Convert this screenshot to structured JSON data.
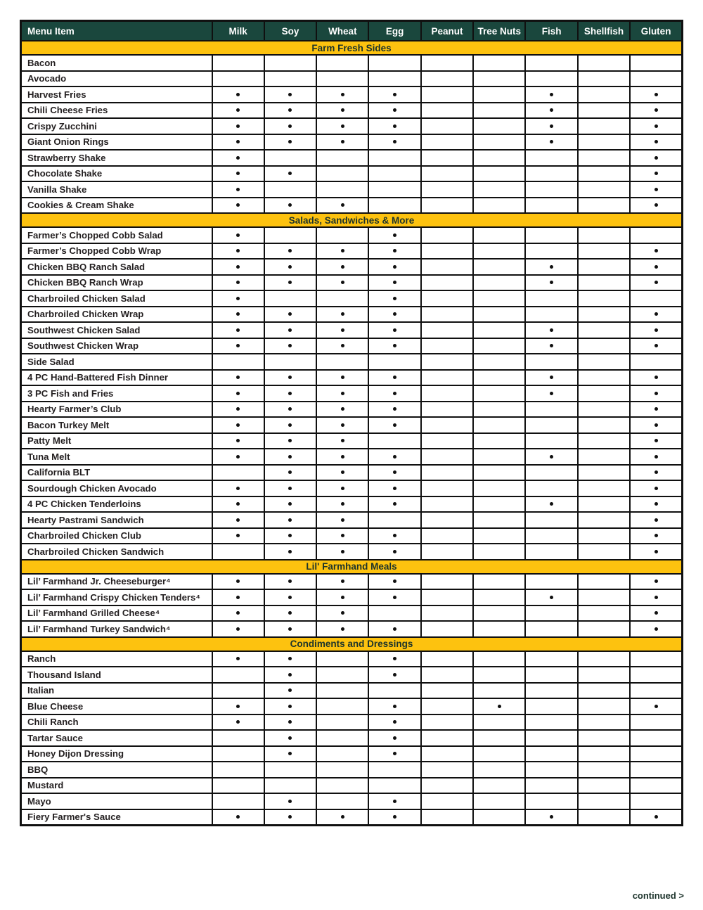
{
  "page": {
    "continued_label": "continued >"
  },
  "colors": {
    "header_green": "#1a473d",
    "section_gold": "#fdc20f",
    "border_black": "#101010",
    "header_text": "#ffffff",
    "body_text": "#231f20"
  },
  "table": {
    "menu_header": "Menu Item",
    "allergen_columns": [
      "Milk",
      "Soy",
      "Wheat",
      "Egg",
      "Peanut",
      "Tree Nuts",
      "Fish",
      "Shellfish",
      "Gluten"
    ],
    "sections": [
      {
        "title": "Farm Fresh Sides",
        "items": [
          {
            "name": "Bacon",
            "allergens": []
          },
          {
            "name": "Avocado",
            "allergens": []
          },
          {
            "name": "Harvest Fries",
            "allergens": [
              "Milk",
              "Soy",
              "Wheat",
              "Egg",
              "Fish",
              "Gluten"
            ]
          },
          {
            "name": "Chili Cheese Fries",
            "allergens": [
              "Milk",
              "Soy",
              "Wheat",
              "Egg",
              "Fish",
              "Gluten"
            ]
          },
          {
            "name": "Crispy Zucchini",
            "allergens": [
              "Milk",
              "Soy",
              "Wheat",
              "Egg",
              "Fish",
              "Gluten"
            ]
          },
          {
            "name": "Giant Onion Rings",
            "allergens": [
              "Milk",
              "Soy",
              "Wheat",
              "Egg",
              "Fish",
              "Gluten"
            ]
          },
          {
            "name": "Strawberry Shake",
            "allergens": [
              "Milk",
              "Gluten"
            ]
          },
          {
            "name": "Chocolate Shake",
            "allergens": [
              "Milk",
              "Soy",
              "Gluten"
            ]
          },
          {
            "name": "Vanilla Shake",
            "allergens": [
              "Milk",
              "Gluten"
            ]
          },
          {
            "name": "Cookies & Cream Shake",
            "allergens": [
              "Milk",
              "Soy",
              "Wheat",
              "Gluten"
            ]
          }
        ]
      },
      {
        "title": "Salads, Sandwiches & More",
        "items": [
          {
            "name": "Farmer’s Chopped Cobb Salad",
            "allergens": [
              "Milk",
              "Egg"
            ]
          },
          {
            "name": "Farmer’s Chopped Cobb Wrap",
            "allergens": [
              "Milk",
              "Soy",
              "Wheat",
              "Egg",
              "Gluten"
            ]
          },
          {
            "name": "Chicken BBQ Ranch Salad",
            "allergens": [
              "Milk",
              "Soy",
              "Wheat",
              "Egg",
              "Fish",
              "Gluten"
            ]
          },
          {
            "name": "Chicken BBQ Ranch Wrap",
            "allergens": [
              "Milk",
              "Soy",
              "Wheat",
              "Egg",
              "Fish",
              "Gluten"
            ]
          },
          {
            "name": "Charbroiled Chicken Salad",
            "allergens": [
              "Milk",
              "Egg"
            ]
          },
          {
            "name": "Charbroiled Chicken Wrap",
            "allergens": [
              "Milk",
              "Soy",
              "Wheat",
              "Egg",
              "Gluten"
            ]
          },
          {
            "name": "Southwest Chicken Salad",
            "allergens": [
              "Milk",
              "Soy",
              "Wheat",
              "Egg",
              "Fish",
              "Gluten"
            ]
          },
          {
            "name": "Southwest Chicken Wrap",
            "allergens": [
              "Milk",
              "Soy",
              "Wheat",
              "Egg",
              "Fish",
              "Gluten"
            ]
          },
          {
            "name": "Side Salad",
            "allergens": []
          },
          {
            "name": "4 PC Hand-Battered Fish Dinner",
            "allergens": [
              "Milk",
              "Soy",
              "Wheat",
              "Egg",
              "Fish",
              "Gluten"
            ]
          },
          {
            "name": "3 PC Fish and Fries",
            "allergens": [
              "Milk",
              "Soy",
              "Wheat",
              "Egg",
              "Fish",
              "Gluten"
            ]
          },
          {
            "name": "Hearty Farmer’s Club",
            "allergens": [
              "Milk",
              "Soy",
              "Wheat",
              "Egg",
              "Gluten"
            ]
          },
          {
            "name": "Bacon Turkey Melt",
            "allergens": [
              "Milk",
              "Soy",
              "Wheat",
              "Egg",
              "Gluten"
            ]
          },
          {
            "name": "Patty Melt",
            "allergens": [
              "Milk",
              "Soy",
              "Wheat",
              "Gluten"
            ]
          },
          {
            "name": "Tuna Melt",
            "allergens": [
              "Milk",
              "Soy",
              "Wheat",
              "Egg",
              "Fish",
              "Gluten"
            ]
          },
          {
            "name": "California BLT",
            "allergens": [
              "Soy",
              "Wheat",
              "Egg",
              "Gluten"
            ]
          },
          {
            "name": "Sourdough Chicken Avocado",
            "allergens": [
              "Milk",
              "Soy",
              "Wheat",
              "Egg",
              "Gluten"
            ]
          },
          {
            "name": "4 PC Chicken Tenderloins",
            "allergens": [
              "Milk",
              "Soy",
              "Wheat",
              "Egg",
              "Fish",
              "Gluten"
            ]
          },
          {
            "name": "Hearty Pastrami Sandwich",
            "allergens": [
              "Milk",
              "Soy",
              "Wheat",
              "Gluten"
            ]
          },
          {
            "name": "Charbroiled Chicken Club",
            "allergens": [
              "Milk",
              "Soy",
              "Wheat",
              "Egg",
              "Gluten"
            ]
          },
          {
            "name": "Charbroiled Chicken Sandwich",
            "allergens": [
              "Soy",
              "Wheat",
              "Egg",
              "Gluten"
            ]
          }
        ]
      },
      {
        "title": "Lil' Farmhand Meals",
        "items": [
          {
            "name": "Lil’ Farmhand Jr. Cheeseburger⁴",
            "allergens": [
              "Milk",
              "Soy",
              "Wheat",
              "Egg",
              "Gluten"
            ]
          },
          {
            "name": "Lil’ Farmhand Crispy Chicken Tenders⁴",
            "allergens": [
              "Milk",
              "Soy",
              "Wheat",
              "Egg",
              "Fish",
              "Gluten"
            ]
          },
          {
            "name": "Lil’ Farmhand Grilled Cheese⁴",
            "allergens": [
              "Milk",
              "Soy",
              "Wheat",
              "Gluten"
            ]
          },
          {
            "name": "Lil’ Farmhand Turkey Sandwich⁴",
            "allergens": [
              "Milk",
              "Soy",
              "Wheat",
              "Egg",
              "Gluten"
            ]
          }
        ]
      },
      {
        "title": "Condiments and Dressings",
        "items": [
          {
            "name": "Ranch",
            "allergens": [
              "Milk",
              "Soy",
              "Egg"
            ]
          },
          {
            "name": "Thousand Island",
            "allergens": [
              "Soy",
              "Egg"
            ]
          },
          {
            "name": "Italian",
            "allergens": [
              "Soy"
            ]
          },
          {
            "name": "Blue Cheese",
            "allergens": [
              "Milk",
              "Soy",
              "Egg",
              "Tree Nuts",
              "Gluten"
            ]
          },
          {
            "name": "Chili Ranch",
            "allergens": [
              "Milk",
              "Soy",
              "Egg"
            ]
          },
          {
            "name": "Tartar Sauce",
            "allergens": [
              "Soy",
              "Egg"
            ]
          },
          {
            "name": "Honey Dijon Dressing",
            "allergens": [
              "Soy",
              "Egg"
            ]
          },
          {
            "name": "BBQ",
            "allergens": []
          },
          {
            "name": "Mustard",
            "allergens": []
          },
          {
            "name": "Mayo",
            "allergens": [
              "Soy",
              "Egg"
            ]
          },
          {
            "name": "Fiery Farmer's Sauce",
            "allergens": [
              "Milk",
              "Soy",
              "Wheat",
              "Egg",
              "Fish",
              "Gluten"
            ]
          }
        ]
      }
    ]
  }
}
